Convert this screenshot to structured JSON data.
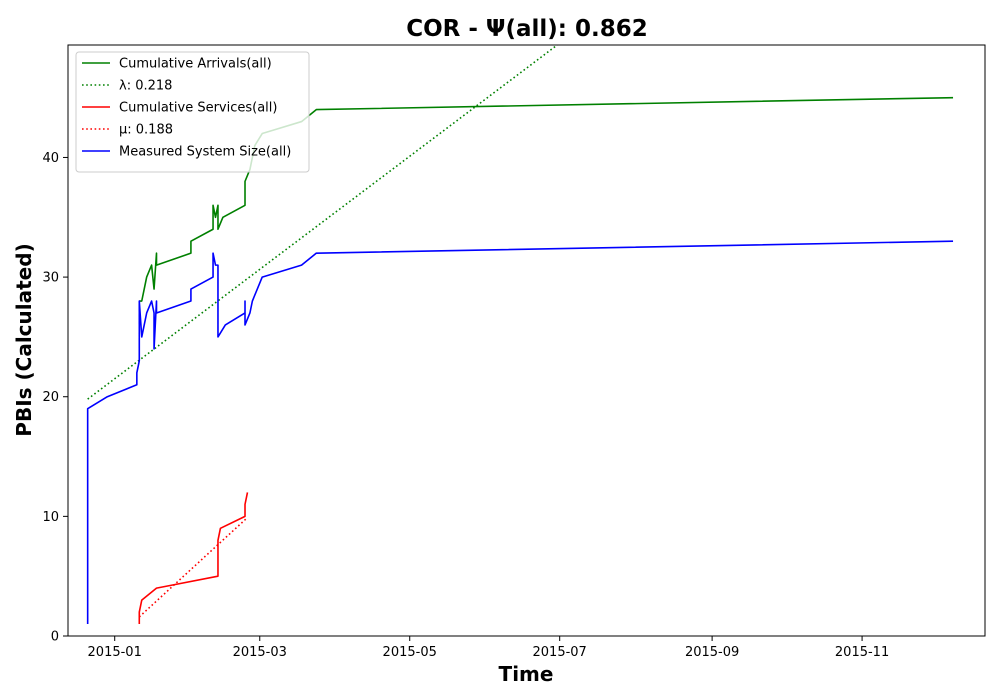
{
  "chart_data": {
    "type": "line",
    "title": "COR -  Ψ(all): 0.862",
    "xlabel": "Time",
    "ylabel": "PBIs (Calculated)",
    "x_ticks": [
      "2015-01",
      "2015-03",
      "2015-05",
      "2015-07",
      "2015-09",
      "2015-11"
    ],
    "x_tick_dates": [
      "2015-01-01",
      "2015-03-01",
      "2015-05-01",
      "2015-07-01",
      "2015-09-01",
      "2015-11-01"
    ],
    "xlim": [
      "2014-12-13",
      "2015-12-21"
    ],
    "y_ticks": [
      0,
      10,
      20,
      30,
      40
    ],
    "ylim": [
      0,
      49.4
    ],
    "grid": false,
    "legend_position": "top-left",
    "series": [
      {
        "name": "Cumulative Arrivals(all)",
        "color": "#008000",
        "style": "solid",
        "points": [
          [
            "2015-01-11",
            28
          ],
          [
            "2015-01-12",
            28
          ],
          [
            "2015-01-13",
            29
          ],
          [
            "2015-01-14",
            30
          ],
          [
            "2015-01-16",
            31
          ],
          [
            "2015-01-17",
            29
          ],
          [
            "2015-01-18",
            32
          ],
          [
            "2015-01-18",
            31
          ],
          [
            "2015-02-01",
            32
          ],
          [
            "2015-02-01",
            33
          ],
          [
            "2015-02-10",
            34
          ],
          [
            "2015-02-10",
            36
          ],
          [
            "2015-02-11",
            35
          ],
          [
            "2015-02-12",
            36
          ],
          [
            "2015-02-12",
            34
          ],
          [
            "2015-02-14",
            35
          ],
          [
            "2015-02-23",
            36
          ],
          [
            "2015-02-23",
            38
          ],
          [
            "2015-02-25",
            39
          ],
          [
            "2015-02-27",
            41
          ],
          [
            "2015-03-02",
            42
          ],
          [
            "2015-03-18",
            43
          ],
          [
            "2015-03-24",
            44
          ],
          [
            "2015-12-08",
            45
          ]
        ]
      },
      {
        "name": "λ: 0.218",
        "color": "#008000",
        "style": "dotted",
        "points": [
          [
            "2014-12-21",
            19.8
          ],
          [
            "2015-06-30",
            49.4
          ]
        ]
      },
      {
        "name": "Cumulative Services(all)",
        "color": "#ff0000",
        "style": "solid",
        "points": [
          [
            "2015-01-11",
            1
          ],
          [
            "2015-01-11",
            2
          ],
          [
            "2015-01-12",
            3
          ],
          [
            "2015-01-18",
            4
          ],
          [
            "2015-01-23",
            4.2
          ],
          [
            "2015-02-12",
            5
          ],
          [
            "2015-02-12",
            8
          ],
          [
            "2015-02-13",
            9
          ],
          [
            "2015-02-23",
            10
          ],
          [
            "2015-02-23",
            11
          ],
          [
            "2015-02-24",
            12
          ]
        ]
      },
      {
        "name": "μ: 0.188",
        "color": "#ff0000",
        "style": "dotted",
        "points": [
          [
            "2015-01-11",
            1.6
          ],
          [
            "2015-02-24",
            9.9
          ]
        ]
      },
      {
        "name": "Measured System Size(all)",
        "color": "#0000ff",
        "style": "solid",
        "points": [
          [
            "2014-12-21",
            1
          ],
          [
            "2014-12-21",
            19
          ],
          [
            "2014-12-29",
            20
          ],
          [
            "2015-01-10",
            21
          ],
          [
            "2015-01-10",
            22
          ],
          [
            "2015-01-11",
            23
          ],
          [
            "2015-01-11",
            28
          ],
          [
            "2015-01-12",
            25
          ],
          [
            "2015-01-14",
            27
          ],
          [
            "2015-01-16",
            28
          ],
          [
            "2015-01-17",
            27
          ],
          [
            "2015-01-17",
            24
          ],
          [
            "2015-01-18",
            28
          ],
          [
            "2015-01-18",
            27
          ],
          [
            "2015-02-01",
            28
          ],
          [
            "2015-02-01",
            29
          ],
          [
            "2015-02-10",
            30
          ],
          [
            "2015-02-10",
            32
          ],
          [
            "2015-02-11",
            31
          ],
          [
            "2015-02-12",
            31
          ],
          [
            "2015-02-12",
            27
          ],
          [
            "2015-02-12",
            25
          ],
          [
            "2015-02-15",
            26
          ],
          [
            "2015-02-23",
            27
          ],
          [
            "2015-02-23",
            28
          ],
          [
            "2015-02-23",
            26
          ],
          [
            "2015-02-25",
            27
          ],
          [
            "2015-02-26",
            28
          ],
          [
            "2015-03-02",
            30
          ],
          [
            "2015-03-18",
            31
          ],
          [
            "2015-03-24",
            32
          ],
          [
            "2015-12-08",
            33
          ]
        ]
      }
    ]
  }
}
